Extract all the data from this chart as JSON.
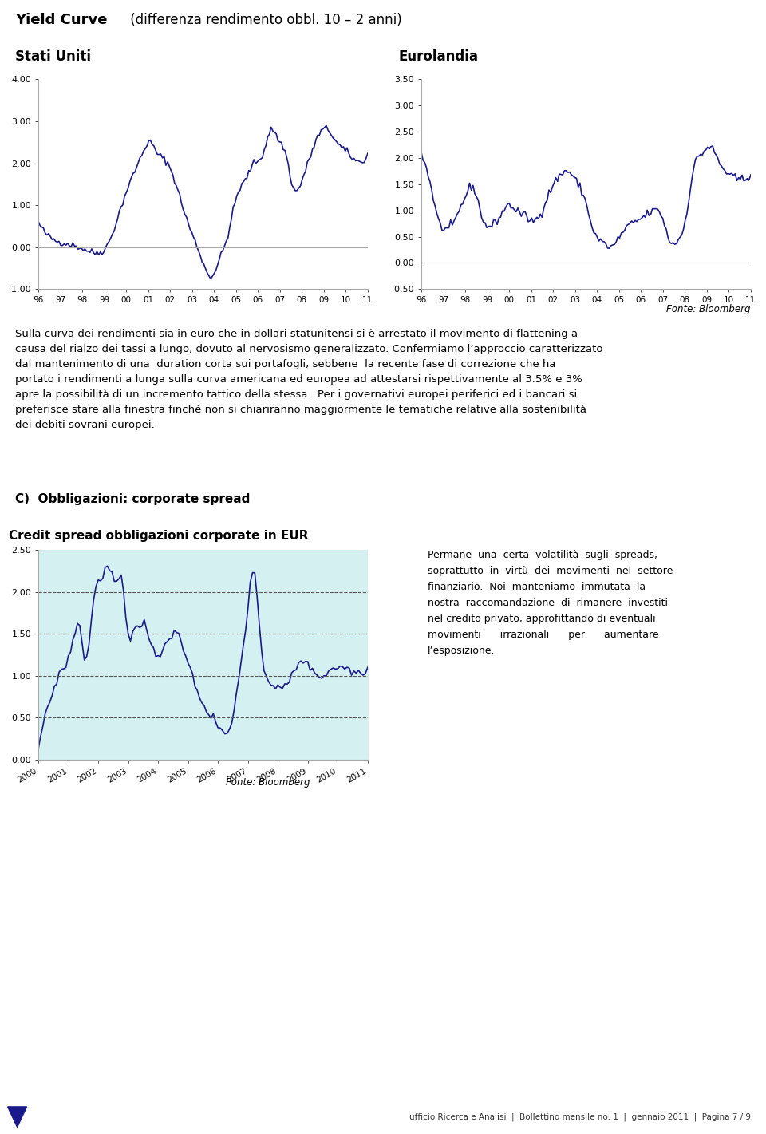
{
  "main_title_bold": "Yield Curve",
  "main_title_normal": " (differenza rendimento obbl. 10 – 2 anni)",
  "subtitle_left": "Stati Uniti",
  "subtitle_right": "Eurolandia",
  "fonte_bloomberg": "Fonte: Bloomberg",
  "x_labels_top": [
    "96",
    "97",
    "98",
    "99",
    "00",
    "01",
    "02",
    "03",
    "04",
    "05",
    "06",
    "07",
    "08",
    "09",
    "10",
    "11"
  ],
  "us_ylim": [
    -1.0,
    4.0
  ],
  "us_yticks": [
    -1.0,
    0.0,
    1.0,
    2.0,
    3.0,
    4.0
  ],
  "eu_ylim": [
    -0.5,
    3.5
  ],
  "eu_yticks": [
    -0.5,
    0.0,
    0.5,
    1.0,
    1.5,
    2.0,
    2.5,
    3.0,
    3.5
  ],
  "line_color": "#1a1a8c",
  "line_width": 1.2,
  "text_paragraph1": "Sulla curva dei rendimenti sia in euro che in dollari statunitensi si è arrestato il movimento di flattening a\ncausa del rialzo dei tassi a lungo, dovuto al nervosismo generalizzato. Confermiamo l’approccio caratterizzato\ndal mantenimento di una  duration corta sui portafogli, sebbene  la recente fase di correzione che ha\nportato i rendimenti a lunga sulla curva americana ed europea ad attestarsi rispettivamente al 3.5% e 3%\napre la possibilità di un incremento tattico della stessa.  Per i governativi europei periferici ed i bancari si\npreferisce stare alla finestra finché non si chiariranno maggiormente le tematiche relative alla sostenibilità\ndei debiti sovrani europei.",
  "section_c_label": "C)  Obbligazioni: corporate spread",
  "chart2_title": "Credit spread obbligazioni corporate in EUR",
  "chart2_x_labels": [
    "2000",
    "2001",
    "2002",
    "2003",
    "2004",
    "2005",
    "2006",
    "2007",
    "2008",
    "2009",
    "2010",
    "2011"
  ],
  "chart2_ylim": [
    0.0,
    2.5
  ],
  "chart2_yticks": [
    0.0,
    0.5,
    1.0,
    1.5,
    2.0,
    2.5
  ],
  "chart2_bg_color": "#d4f0f0",
  "chart2_dashed_levels": [
    0.5,
    1.0,
    1.5,
    2.0
  ],
  "text_paragraph2_right": "Permane  una  certa  volatilità  sugli  spreads,\nsoprattutto  in  virtù  dei  movimenti  nel  settore\nfinanziario.  Noi  manteniamo  immutata  la\nnostra  raccomandazione  di  rimanere  investiti\nnel credito privato, approfittando di eventuali\nmovimenti      irrazionali      per      aumentare\nl’esposizione.",
  "footer_text": "ufficio Ricerca e Analisi  |  Bollettino mensile no. 1  |  gennaio 2011  |  Pagina 7 / 9",
  "bg_color": "#ffffff",
  "text_color": "#000000",
  "axis_color": "#555555"
}
